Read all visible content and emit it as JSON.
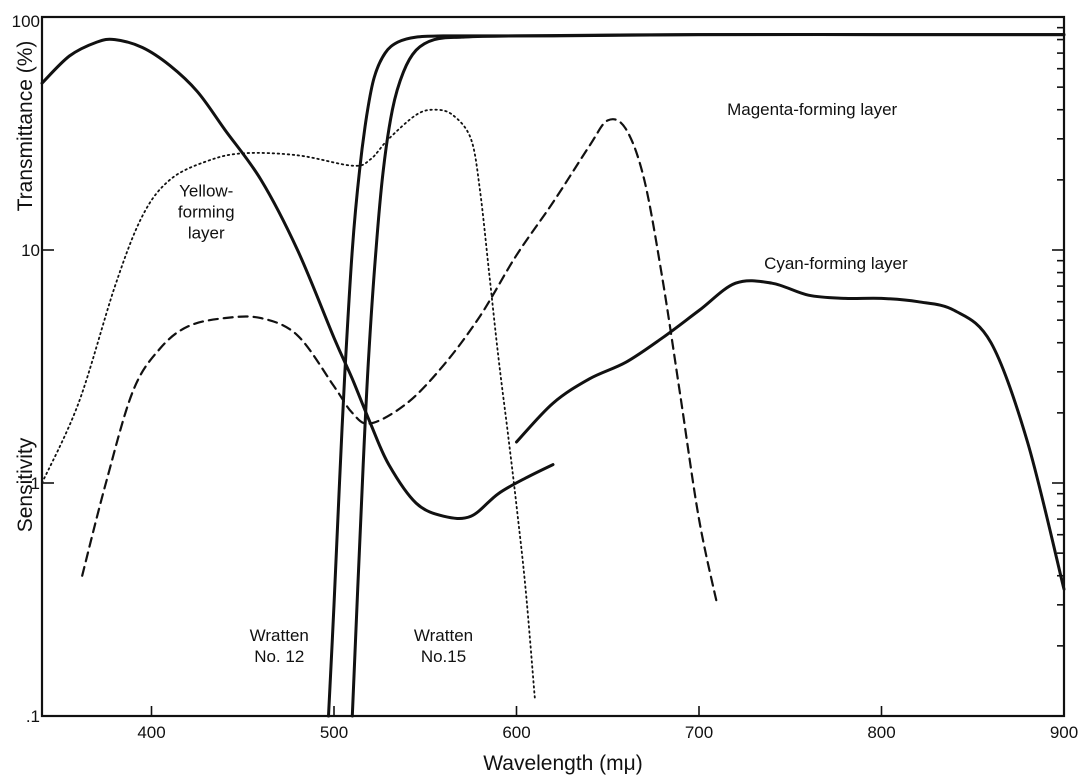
{
  "chart_data": {
    "type": "line",
    "xlabel": "Wavelength (mμ)",
    "ylabel_top": "Transmittance (%)",
    "ylabel_bottom": "Sensitivity",
    "xlim": [
      340,
      900
    ],
    "ylim": [
      0.1,
      100
    ],
    "yscale": "log",
    "x_ticks": [
      400,
      500,
      600,
      700,
      800,
      900
    ],
    "x_tick_labels": [
      "400",
      "500",
      "600",
      "700",
      "800",
      "900"
    ],
    "y_ticks": [
      0.1,
      1,
      10,
      100
    ],
    "y_tick_labels": [
      ".1",
      "1",
      "10",
      "100"
    ],
    "series": [
      {
        "name": "Yellow-forming layer",
        "style": "solid",
        "x": [
          340,
          355,
          370,
          380,
          395,
          410,
          425,
          440,
          460,
          480,
          500,
          510,
          520,
          530,
          545,
          560,
          575,
          590,
          605,
          620
        ],
        "y": [
          52,
          68,
          78,
          80,
          74,
          62,
          48,
          33,
          20,
          10,
          4.2,
          2.8,
          1.8,
          1.2,
          0.82,
          0.72,
          0.72,
          0.9,
          1.05,
          1.2
        ]
      },
      {
        "name": "Cyan-forming layer",
        "style": "solid",
        "x": [
          600,
          620,
          640,
          660,
          680,
          700,
          720,
          740,
          760,
          780,
          800,
          820,
          840,
          860,
          880,
          900
        ],
        "y": [
          1.5,
          2.2,
          2.8,
          3.3,
          4.2,
          5.5,
          7.2,
          7.2,
          6.4,
          6.2,
          6.2,
          6.0,
          5.5,
          4.0,
          1.5,
          0.35
        ]
      },
      {
        "name": "Magenta-forming layer",
        "style": "dashed",
        "x": [
          362,
          375,
          390,
          405,
          420,
          440,
          460,
          480,
          500,
          510,
          520,
          540,
          560,
          580,
          600,
          620,
          640,
          650,
          660,
          670,
          680,
          690,
          700,
          710
        ],
        "y": [
          0.4,
          1.0,
          2.5,
          3.8,
          4.7,
          5.1,
          5.1,
          4.3,
          2.6,
          2.0,
          1.8,
          2.2,
          3.2,
          5.2,
          9.5,
          16,
          28,
          36,
          33,
          20,
          7.5,
          2.3,
          0.7,
          0.3
        ]
      },
      {
        "name": "Yellow-forming layer (transmittance)",
        "style": "dotted",
        "x": [
          340,
          360,
          380,
          395,
          410,
          430,
          450,
          480,
          510,
          520,
          530,
          545,
          555,
          565,
          575,
          580,
          585,
          590,
          595,
          600,
          605,
          610
        ],
        "y": [
          1.0,
          2.2,
          7.0,
          14,
          20,
          24,
          26,
          25.5,
          23,
          24.5,
          30,
          38,
          40,
          38,
          30,
          18,
          8,
          3.5,
          1.7,
          0.8,
          0.35,
          0.12
        ]
      },
      {
        "name": "Wratten No. 12",
        "style": "solid",
        "x": [
          497,
          500,
          503,
          506,
          510,
          514,
          518,
          522,
          528,
          535,
          545,
          560,
          580,
          620,
          700,
          800,
          900
        ],
        "y": [
          0.1,
          0.3,
          1.0,
          3.0,
          10,
          22,
          38,
          55,
          70,
          78,
          82,
          83,
          83,
          83,
          84,
          84,
          84
        ]
      },
      {
        "name": "Wratten No. 15",
        "style": "solid",
        "x": [
          510,
          513,
          516,
          519,
          523,
          527,
          532,
          538,
          545,
          555,
          570,
          600,
          700,
          800,
          900
        ],
        "y": [
          0.1,
          0.35,
          1.2,
          3.5,
          10,
          22,
          40,
          58,
          72,
          80,
          82,
          83,
          84,
          84,
          84
        ]
      }
    ],
    "annotations": [
      {
        "lines": [
          "Yellow-",
          "forming",
          "layer"
        ],
        "x": 430,
        "y": 17
      },
      {
        "lines": [
          "Magenta-forming layer"
        ],
        "x": 762,
        "y": 38
      },
      {
        "lines": [
          "Cyan-forming layer"
        ],
        "x": 775,
        "y": 8.3
      },
      {
        "lines": [
          "Wratten",
          "No. 12"
        ],
        "x": 470,
        "y": 0.21
      },
      {
        "lines": [
          "Wratten",
          "No.15"
        ],
        "x": 560,
        "y": 0.21
      }
    ],
    "grid": false,
    "legend": "none"
  }
}
